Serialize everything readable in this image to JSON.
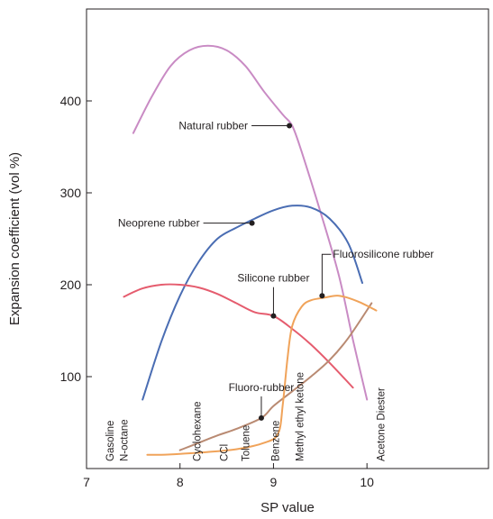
{
  "chart_data": {
    "type": "line",
    "xlabel": "SP value",
    "ylabel": "Expansion coefficient (vol %)",
    "xlim": [
      7,
      11.3
    ],
    "ylim": [
      0,
      500
    ],
    "x_ticks": [
      7,
      8,
      9,
      10
    ],
    "y_ticks": [
      100,
      200,
      300,
      400
    ],
    "x_tick_labels": [
      "7",
      "8",
      "9",
      "10"
    ],
    "y_tick_labels": [
      "100",
      "200",
      "300",
      "400"
    ],
    "grid": false,
    "legend": "none",
    "series": [
      {
        "name": "Natural rubber",
        "color": "#c98bc4",
        "x": [
          7.5,
          7.7,
          7.9,
          8.1,
          8.3,
          8.5,
          8.7,
          8.9,
          9.1,
          9.2,
          9.3,
          9.5,
          9.7,
          9.85,
          10.0
        ],
        "y": [
          365,
          405,
          438,
          455,
          460,
          455,
          438,
          410,
          385,
          373,
          345,
          280,
          210,
          140,
          75
        ]
      },
      {
        "name": "Neoprene rubber",
        "color": "#4a6db3",
        "x": [
          7.6,
          7.8,
          8.0,
          8.2,
          8.4,
          8.6,
          8.8,
          9.0,
          9.2,
          9.4,
          9.6,
          9.8,
          9.95
        ],
        "y": [
          75,
          138,
          188,
          225,
          250,
          262,
          272,
          281,
          286,
          284,
          272,
          245,
          202
        ]
      },
      {
        "name": "Silicone rubber",
        "color": "#e55c6e",
        "x": [
          7.4,
          7.6,
          7.8,
          8.0,
          8.2,
          8.4,
          8.6,
          8.8,
          9.0,
          9.2,
          9.4,
          9.6,
          9.85
        ],
        "y": [
          187,
          196,
          200,
          200,
          197,
          190,
          180,
          170,
          166,
          152,
          135,
          115,
          88
        ]
      },
      {
        "name": "Fluoro-rubber",
        "color": "#b98a72",
        "x": [
          8.0,
          8.2,
          8.4,
          8.6,
          8.87,
          9.0,
          9.2,
          9.4,
          9.6,
          9.8,
          10.05
        ],
        "y": [
          20,
          28,
          36,
          43,
          55,
          68,
          84,
          100,
          118,
          142,
          180
        ]
      },
      {
        "name": "Fluorosilicone rubber",
        "color": "#f0a35a",
        "x": [
          7.65,
          7.8,
          8.0,
          8.3,
          8.6,
          8.9,
          9.05,
          9.1,
          9.15,
          9.2,
          9.3,
          9.4,
          9.55,
          9.7,
          9.9,
          10.1
        ],
        "y": [
          15,
          15,
          16,
          18,
          21,
          28,
          38,
          70,
          120,
          155,
          176,
          183,
          186,
          188,
          182,
          172
        ]
      }
    ],
    "annotations": [
      {
        "text": "Natural rubber",
        "series": 0,
        "x": 9.17,
        "y": 373
      },
      {
        "text": "Neoprene rubber",
        "series": 1,
        "x": 8.77,
        "y": 267
      },
      {
        "text": "Silicone rubber",
        "series": 2,
        "x": 9.0,
        "y": 166
      },
      {
        "text": "Fluoro-rubber",
        "series": 3,
        "x": 8.87,
        "y": 55
      },
      {
        "text": "Fluorosilicone rubber",
        "series": 4,
        "x": 9.52,
        "y": 188
      }
    ],
    "solvents": [
      {
        "text": "Gasoline",
        "x": 7.25
      },
      {
        "text": "N-octane",
        "x": 7.4
      },
      {
        "text": "Cyclohexane",
        "x": 8.18
      },
      {
        "text": "CCl",
        "x": 8.47
      },
      {
        "text": "Toluene",
        "x": 8.7
      },
      {
        "text": "Benzene",
        "x": 9.02
      },
      {
        "text": "Methyl ethyl ketone",
        "x": 9.28
      },
      {
        "text": "Acetone Diester",
        "x": 10.15
      }
    ]
  }
}
